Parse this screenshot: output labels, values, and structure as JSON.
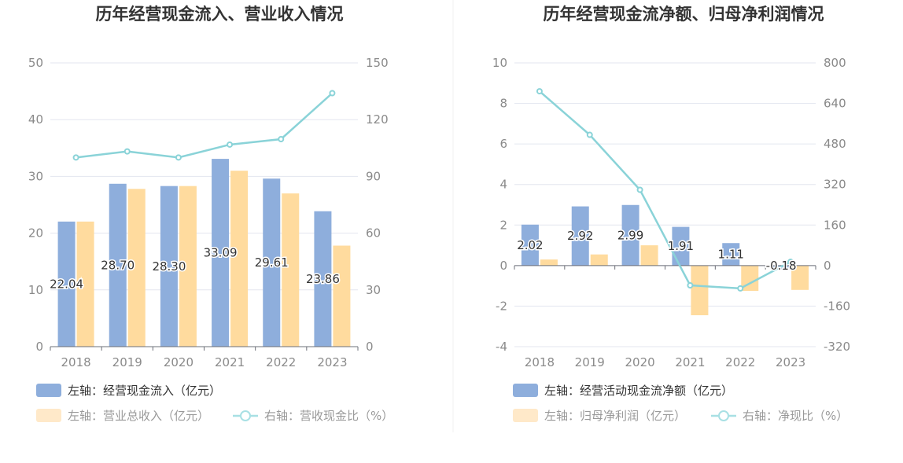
{
  "chart_data": [
    {
      "type": "bar",
      "title": "历年经营现金流入、营业收入情况",
      "categories": [
        "2018",
        "2019",
        "2020",
        "2021",
        "2022",
        "2023"
      ],
      "series": [
        {
          "name": "左轴：经营现金流入（亿元）",
          "axis": "left",
          "type": "bar",
          "color": "#8eaedc",
          "values": [
            22.04,
            28.7,
            28.3,
            33.09,
            29.61,
            23.86
          ],
          "labels": [
            "22.04",
            "28.70",
            "28.30",
            "33.09",
            "29.61",
            "23.86"
          ]
        },
        {
          "name": "左轴：营业总收入（亿元）",
          "axis": "left",
          "type": "bar",
          "color": "#ffdb9e",
          "values": [
            22.04,
            27.8,
            28.3,
            31.0,
            27.0,
            17.8
          ]
        },
        {
          "name": "右轴：营收现金比（%）",
          "axis": "right",
          "type": "line",
          "color": "#8ad3d8",
          "values": [
            100.0,
            103.2,
            100.0,
            106.8,
            109.7,
            134.0
          ]
        }
      ],
      "left_axis": {
        "ylim": [
          0,
          50
        ],
        "ticks": [
          "0",
          "10",
          "20",
          "30",
          "40",
          "50"
        ]
      },
      "right_axis": {
        "ylim": [
          0,
          150
        ],
        "ticks": [
          "0",
          "30",
          "60",
          "90",
          "120",
          "150"
        ]
      },
      "grid": true,
      "legend_position": "bottom-left"
    },
    {
      "type": "bar",
      "title": "历年经营现金流净额、归母净利润情况",
      "categories": [
        "2018",
        "2019",
        "2020",
        "2021",
        "2022",
        "2023"
      ],
      "series": [
        {
          "name": "左轴：经营活动现金流净额（亿元）",
          "axis": "left",
          "type": "bar",
          "color": "#8eaedc",
          "values": [
            2.02,
            2.92,
            2.99,
            1.91,
            1.11,
            -0.18
          ],
          "labels": [
            "2.02",
            "2.92",
            "2.99",
            "1.91",
            "1.11",
            "-0.18"
          ]
        },
        {
          "name": "左轴：归母净利润（亿元）",
          "axis": "left",
          "type": "bar",
          "color": "#ffdb9e",
          "values": [
            0.3,
            0.55,
            1.0,
            -2.45,
            -1.25,
            -1.2
          ]
        },
        {
          "name": "右轴：净现比（%）",
          "axis": "right",
          "type": "line",
          "color": "#8ad3d8",
          "values": [
            688,
            516,
            299,
            -78,
            -90,
            15
          ]
        }
      ],
      "left_axis": {
        "ylim": [
          -4,
          10
        ],
        "ticks": [
          "-4",
          "-2",
          "0",
          "2",
          "4",
          "6",
          "8",
          "10"
        ]
      },
      "right_axis": {
        "ylim": [
          -320,
          800
        ],
        "ticks": [
          "-320",
          "-160",
          "0",
          "160",
          "320",
          "480",
          "640",
          "800"
        ]
      },
      "grid": true,
      "legend_position": "bottom-left"
    }
  ]
}
